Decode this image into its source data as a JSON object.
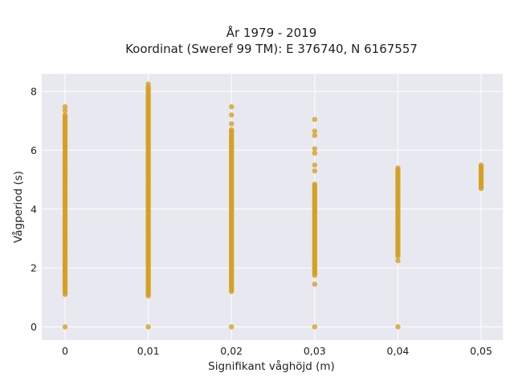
{
  "chart_data": {
    "type": "scatter",
    "title_lines": [
      "År 1979 - 2019",
      "Koordinat (Sweref 99 TM): E 376740, N 6167557"
    ],
    "xlabel": "Signifikant våghöjd (m)",
    "ylabel": "Vågperiod (s)",
    "x_ticks": [
      0,
      0.01,
      0.02,
      0.03,
      0.04,
      0.05
    ],
    "x_tick_labels": [
      "0",
      "0,01",
      "0,02",
      "0,03",
      "0,04",
      "0,05"
    ],
    "y_ticks": [
      0,
      2,
      4,
      6,
      8
    ],
    "y_tick_labels": [
      "0",
      "2",
      "4",
      "6",
      "8"
    ],
    "xlim": [
      -0.0028,
      0.0526
    ],
    "ylim": [
      -0.45,
      8.6
    ],
    "grid": true,
    "legend": "none",
    "marker_color": "#d4a020",
    "series": [
      {
        "x_groups": [
          {
            "x": 0,
            "y_min": 1.1,
            "y_max": 7.2,
            "y_extra": [
              0,
              7.35,
              7.48,
              2.4,
              2.1
            ]
          },
          {
            "x": 0.01,
            "y_min": 1.05,
            "y_max": 8.15,
            "y_extra": [
              0,
              8.25
            ]
          },
          {
            "x": 0.02,
            "y_min": 1.2,
            "y_max": 6.7,
            "y_extra": [
              0,
              6.9,
              7.2,
              7.48
            ]
          },
          {
            "x": 0.03,
            "y_min": 1.75,
            "y_max": 4.85,
            "y_extra": [
              0,
              1.45,
              5.3,
              5.5,
              5.9,
              6.05,
              6.5,
              6.65,
              7.05
            ]
          },
          {
            "x": 0.04,
            "y_min": 2.4,
            "y_max": 5.4,
            "y_extra": [
              0,
              2.25
            ]
          },
          {
            "x": 0.05,
            "y_min": 4.7,
            "y_max": 5.5,
            "y_extra": []
          }
        ]
      }
    ]
  }
}
